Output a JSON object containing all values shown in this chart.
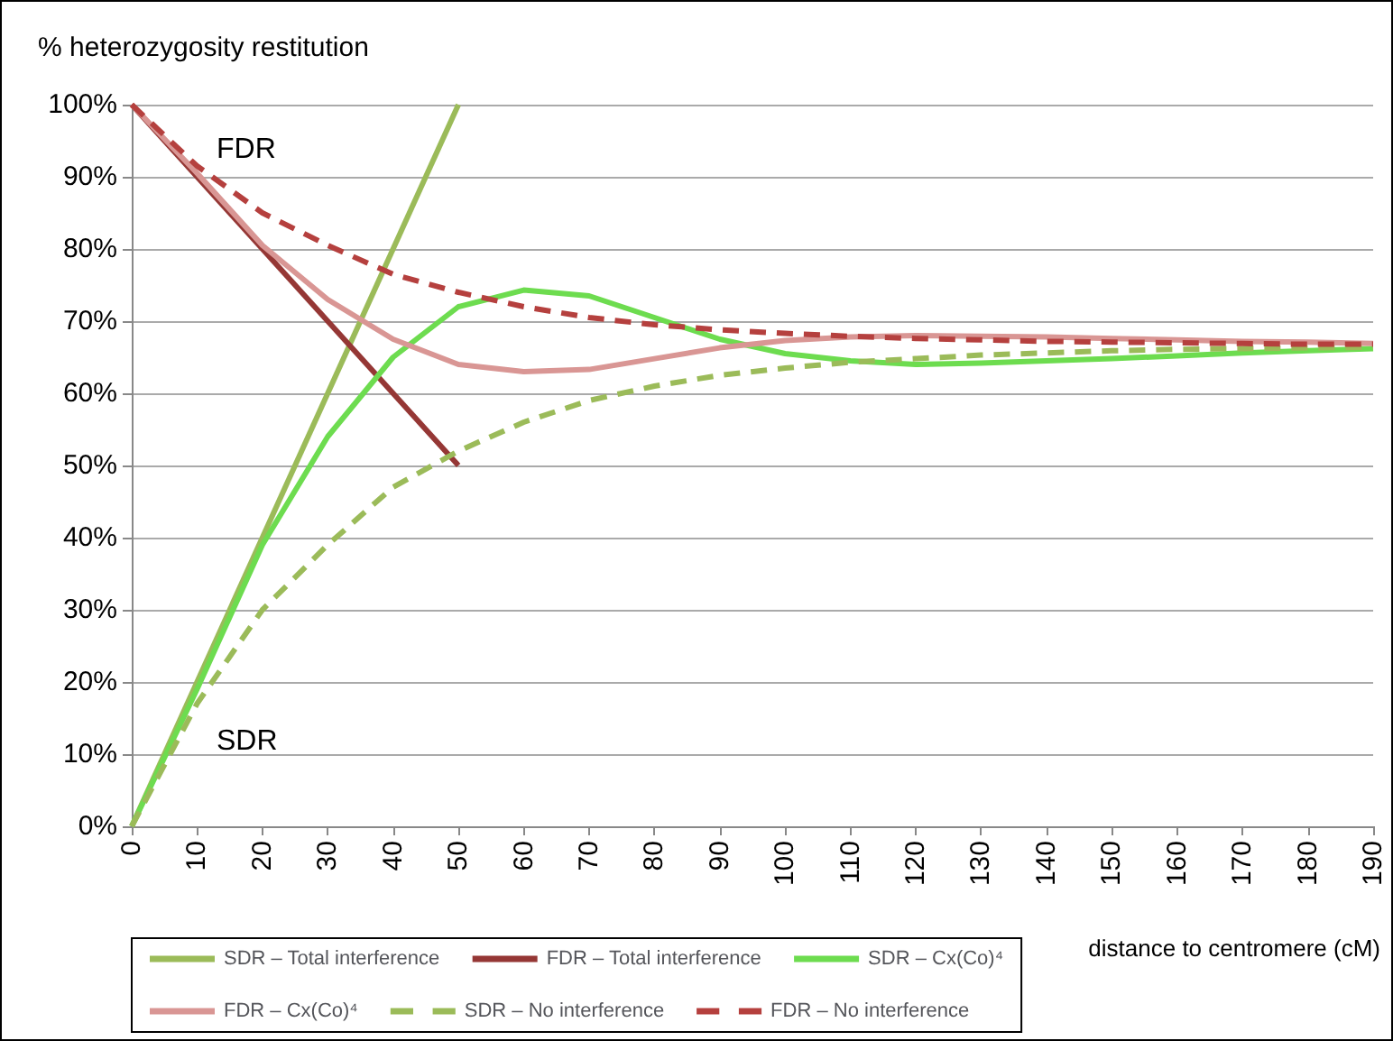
{
  "chart_data": {
    "type": "line",
    "ylabel": "% heterozygosity restitution",
    "xlabel": "distance to centromere (cM)",
    "xlim": [
      0,
      190
    ],
    "xticks": [
      0,
      10,
      20,
      30,
      40,
      50,
      60,
      70,
      80,
      90,
      100,
      110,
      120,
      130,
      140,
      150,
      160,
      170,
      180,
      190
    ],
    "ylim": [
      0,
      100
    ],
    "yticks": [
      {
        "value": 0,
        "label": "0%"
      },
      {
        "value": 10,
        "label": "10%"
      },
      {
        "value": 20,
        "label": "20%"
      },
      {
        "value": 30,
        "label": "30%"
      },
      {
        "value": 40,
        "label": "40%"
      },
      {
        "value": 50,
        "label": "50%"
      },
      {
        "value": 60,
        "label": "60%"
      },
      {
        "value": 70,
        "label": "70%"
      },
      {
        "value": 80,
        "label": "80%"
      },
      {
        "value": 90,
        "label": "90%"
      },
      {
        "value": 100,
        "label": "100%"
      }
    ],
    "grid": "y",
    "legend": "bottom",
    "marker": "none",
    "annotations": [
      "FDR",
      "SDR"
    ],
    "series": [
      {
        "name": "SDR – Total interference",
        "color": "#9bbb59",
        "line_style": "solid",
        "x": [
          0,
          50
        ],
        "values": [
          0,
          100
        ]
      },
      {
        "name": "FDR – Total interference",
        "color": "#953735",
        "line_style": "solid",
        "x": [
          0,
          50
        ],
        "values": [
          100,
          50
        ]
      },
      {
        "name": "SDR – Cx(Co)⁴",
        "color": "#6ddc4f",
        "line_style": "solid",
        "x": [
          0,
          10,
          20,
          30,
          40,
          50,
          60,
          70,
          80,
          90,
          100,
          110,
          120,
          130,
          140,
          150,
          160,
          170,
          180,
          190
        ],
        "values": [
          0,
          19,
          39,
          54,
          65,
          72,
          74.3,
          73.5,
          70.5,
          67.5,
          65.5,
          64.5,
          64,
          64.2,
          64.5,
          64.8,
          65.2,
          65.6,
          65.9,
          66.2
        ]
      },
      {
        "name": "FDR – Cx(Co)⁴",
        "color": "#d99694",
        "line_style": "solid",
        "x": [
          0,
          10,
          20,
          30,
          40,
          50,
          60,
          70,
          80,
          90,
          100,
          110,
          120,
          130,
          140,
          150,
          160,
          170,
          180,
          190
        ],
        "values": [
          100,
          90.5,
          80.5,
          73,
          67.5,
          64,
          63,
          63.3,
          64.8,
          66.3,
          67.3,
          67.8,
          68,
          67.9,
          67.8,
          67.6,
          67.4,
          67.2,
          67.1,
          66.9
        ]
      },
      {
        "name": "SDR – No interference",
        "color": "#9bbb59",
        "line_style": "dashed",
        "x": [
          0,
          10,
          20,
          30,
          40,
          50,
          60,
          70,
          80,
          90,
          100,
          110,
          120,
          130,
          140,
          150,
          160,
          170,
          180,
          190
        ],
        "values": [
          0,
          17,
          30,
          39,
          47,
          52,
          56,
          59,
          61,
          62.5,
          63.5,
          64.3,
          64.8,
          65.3,
          65.6,
          65.9,
          66.1,
          66.2,
          66.3,
          66.4
        ]
      },
      {
        "name": "FDR – No interference",
        "color": "#b5403e",
        "line_style": "dashed",
        "x": [
          0,
          10,
          20,
          30,
          40,
          50,
          60,
          70,
          80,
          90,
          100,
          110,
          120,
          130,
          140,
          150,
          160,
          170,
          180,
          190
        ],
        "values": [
          100,
          91.5,
          85,
          80.5,
          76.5,
          74,
          72,
          70.5,
          69.5,
          68.8,
          68.3,
          67.9,
          67.6,
          67.4,
          67.2,
          67.1,
          67,
          66.9,
          66.8,
          66.8
        ]
      }
    ]
  }
}
